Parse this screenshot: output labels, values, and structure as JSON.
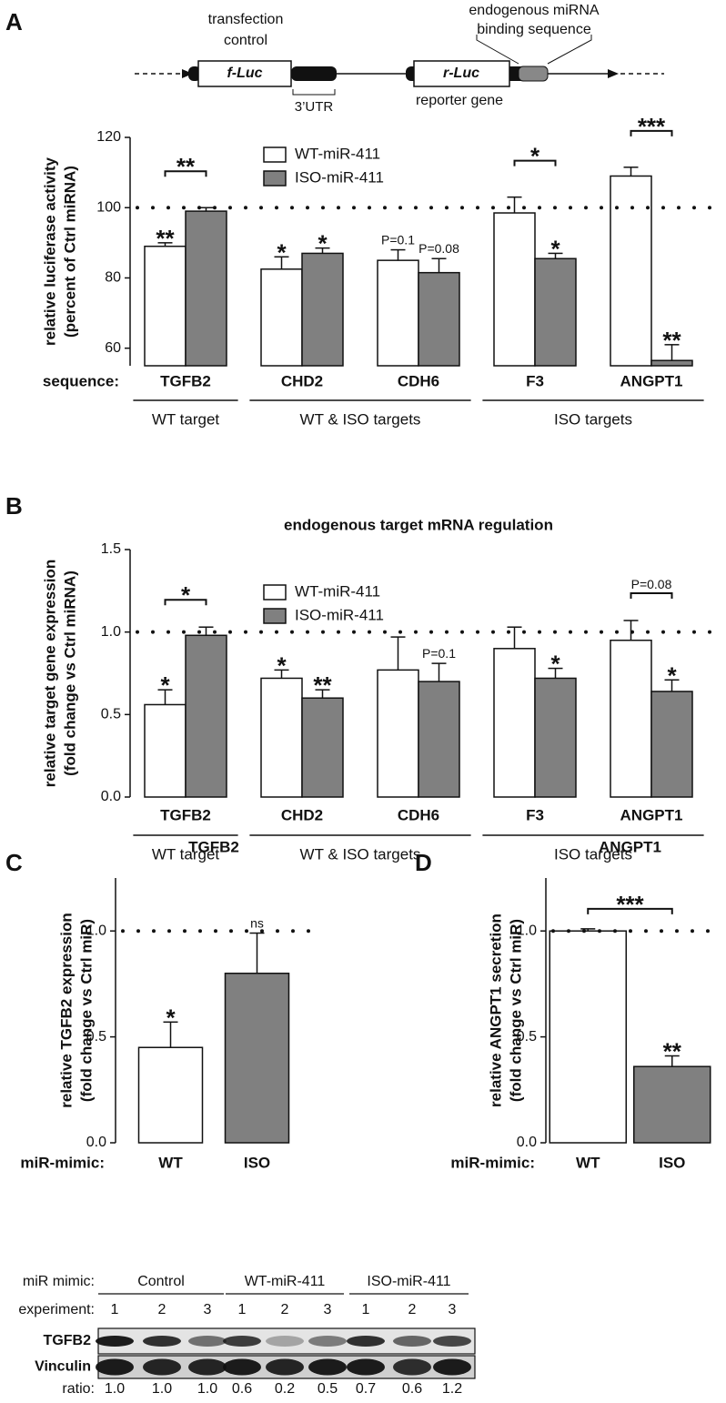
{
  "panel_labels": [
    "A",
    "B",
    "C",
    "D"
  ],
  "diagram": {
    "transfection_control": [
      "transfection",
      "control"
    ],
    "f_luc": "f-Luc",
    "utr": "3’UTR",
    "r_luc": "r-Luc",
    "reporter": "reporter gene",
    "binding": [
      "endogenous miRNA",
      "binding sequence"
    ]
  },
  "chart_data": [
    {
      "type": "bar",
      "ylabel": [
        "relative luciferase activity",
        "(percent of Ctrl miRNA)"
      ],
      "xlabel": "sequence:",
      "categories": [
        "TGFB2",
        "CHD2",
        "CDH6",
        "F3",
        "ANGPT1"
      ],
      "ylim": [
        55,
        120
      ],
      "yticks": [
        60,
        80,
        100,
        120
      ],
      "reference": 100,
      "series": [
        {
          "name": "WT-miR-411",
          "color": "#ffffff",
          "values": [
            89,
            82.5,
            85,
            98.5,
            109
          ],
          "errors": [
            1,
            3.5,
            3,
            4.5,
            2.5
          ],
          "annotations": [
            "**",
            "*",
            "P=0.1",
            null,
            null
          ]
        },
        {
          "name": "ISO-miR-411",
          "color": "#808080",
          "values": [
            99,
            87,
            81.5,
            85.5,
            56.5
          ],
          "errors": [
            1,
            1.5,
            4,
            1.5,
            4.5
          ],
          "annotations": [
            null,
            "*",
            "P=0.08",
            "*",
            "**"
          ]
        }
      ],
      "bracket_labels": [
        "**",
        null,
        null,
        "*",
        "***"
      ],
      "category_groups": [
        {
          "name": "WT target",
          "categories": [
            "TGFB2"
          ]
        },
        {
          "name": "WT & ISO targets",
          "categories": [
            "CHD2",
            "CDH6"
          ]
        },
        {
          "name": "ISO targets",
          "categories": [
            "F3",
            "ANGPT1"
          ]
        }
      ]
    },
    {
      "type": "bar",
      "title": "endogenous target mRNA regulation",
      "ylabel": [
        "relative target gene expression",
        "(fold change vs Ctrl miRNA)"
      ],
      "categories": [
        "TGFB2",
        "CHD2",
        "CDH6",
        "F3",
        "ANGPT1"
      ],
      "ylim": [
        0,
        1.5
      ],
      "yticks": [
        {
          "value": 0,
          "label": "0.0"
        },
        {
          "value": 0.5,
          "label": "0.5"
        },
        {
          "value": 1,
          "label": "1.0"
        },
        {
          "value": 1.5,
          "label": "1.5"
        }
      ],
      "reference": 1,
      "series": [
        {
          "name": "WT-miR-411",
          "color": "#ffffff",
          "values": [
            0.56,
            0.72,
            0.77,
            0.9,
            0.95
          ],
          "errors": [
            0.09,
            0.05,
            0.2,
            0.13,
            0.12
          ],
          "annotations": [
            "*",
            "*",
            null,
            null,
            null
          ]
        },
        {
          "name": "ISO-miR-411",
          "color": "#808080",
          "values": [
            0.98,
            0.6,
            0.7,
            0.72,
            0.64
          ],
          "errors": [
            0.05,
            0.05,
            0.11,
            0.06,
            0.07
          ],
          "annotations": [
            null,
            "**",
            "P=0.1",
            "*",
            "*"
          ]
        }
      ],
      "bracket_labels": [
        "*",
        null,
        null,
        null,
        "P=0.08"
      ],
      "category_groups": [
        {
          "name": "WT target",
          "categories": [
            "TGFB2"
          ]
        },
        {
          "name": "WT & ISO targets",
          "categories": [
            "CHD2",
            "CDH6"
          ]
        },
        {
          "name": "ISO targets",
          "categories": [
            "F3",
            "ANGPT1"
          ]
        }
      ]
    },
    {
      "type": "bar",
      "title": "TGFB2",
      "ylabel": [
        "relative TGFB2 expression",
        "(fold change vs Ctrl miR)"
      ],
      "xlabel": "miR-mimic:",
      "categories": [
        "WT",
        "ISO"
      ],
      "values": [
        0.45,
        0.8
      ],
      "errors": [
        0.12,
        0.19
      ],
      "colors": [
        "#ffffff",
        "#808080"
      ],
      "annotations": [
        "*",
        "ns"
      ],
      "ylim": [
        0,
        1.25
      ],
      "yticks": [
        {
          "value": 0,
          "label": "0.0"
        },
        {
          "value": 0.5,
          "label": "0.5"
        },
        {
          "value": 1,
          "label": "1.0"
        }
      ],
      "reference": 1
    },
    {
      "type": "bar",
      "title": "ANGPT1",
      "ylabel": [
        "relative ANGPT1 secretion",
        "(fold change vs Ctrl miR)"
      ],
      "xlabel": "miR-mimic:",
      "categories": [
        "WT",
        "ISO"
      ],
      "values": [
        1.0,
        0.36
      ],
      "errors": [
        0.01,
        0.05
      ],
      "colors": [
        "#ffffff",
        "#808080"
      ],
      "annotations": [
        null,
        "**"
      ],
      "bracket_label": "***",
      "ylim": [
        0,
        1.25
      ],
      "yticks": [
        {
          "value": 0,
          "label": "0.0"
        },
        {
          "value": 0.5,
          "label": "0.5"
        },
        {
          "value": 1,
          "label": "1.0"
        }
      ],
      "reference": 1
    }
  ],
  "blot": {
    "mimic_label": "miR mimic:",
    "groups": [
      "Control",
      "WT-miR-411",
      "ISO-miR-411"
    ],
    "experiment_label": "experiment:",
    "lanes": [
      1,
      2,
      3,
      1,
      2,
      3,
      1,
      2,
      3
    ],
    "bands": [
      "TGFB2",
      "Vinculin"
    ],
    "ratio_label": "ratio:",
    "ratios": [
      "1.0",
      "1.0",
      "1.0",
      "0.6",
      "0.2",
      "0.5",
      "0.7",
      "0.6",
      "1.2"
    ]
  }
}
